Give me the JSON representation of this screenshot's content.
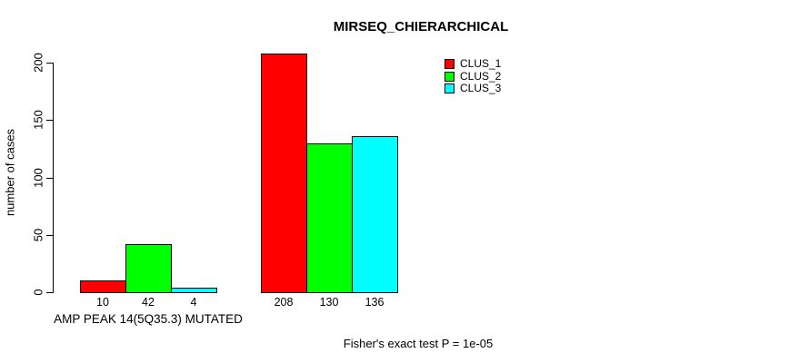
{
  "chart_data": {
    "type": "bar",
    "title": "MIRSEQ_CHIERARCHICAL",
    "ylabel": "number of cases",
    "ylim": [
      0,
      200
    ],
    "yticks": [
      0,
      50,
      100,
      150,
      200
    ],
    "grid": false,
    "legend_position": "top-right",
    "series": [
      {
        "name": "CLUS_1",
        "color": "#ff0000"
      },
      {
        "name": "CLUS_2",
        "color": "#00ff00"
      },
      {
        "name": "CLUS_3",
        "color": "#00ffff"
      }
    ],
    "groups": [
      {
        "label": "AMP PEAK 14(5Q35.3) MUTATED",
        "values": [
          10,
          42,
          4
        ]
      },
      {
        "label": "",
        "values": [
          208,
          130,
          136
        ]
      }
    ],
    "show_value_labels": true,
    "annotation": "Fisher's exact test P = 1e-05"
  }
}
